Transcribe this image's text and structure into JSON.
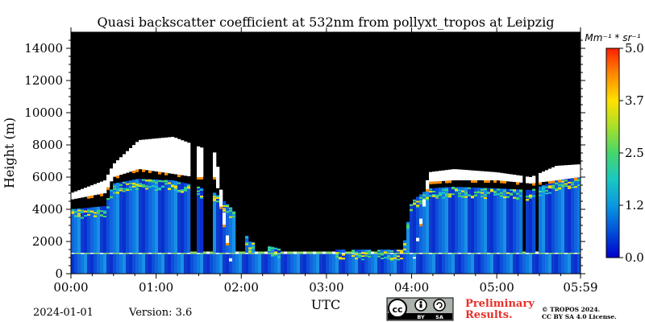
{
  "chart_data": {
    "type": "heatmap",
    "title": "Quasi backscatter coefficient at 532nm from pollyxt_tropos at Leipzig",
    "xlabel": "UTC",
    "ylabel": "Height (m)",
    "x_ticks": [
      "00:00",
      "01:00",
      "02:00",
      "03:00",
      "04:00",
      "05:00",
      "05:59"
    ],
    "x_range_hours": [
      0,
      5.983
    ],
    "y_ticks": [
      0,
      2000,
      4000,
      6000,
      8000,
      10000,
      12000,
      14000
    ],
    "ylim": [
      0,
      15000
    ],
    "colorbar": {
      "label": "Mm⁻¹ * sr⁻¹",
      "ticks": [
        "0.0",
        "1.2",
        "2.5",
        "3.7",
        "5.0"
      ],
      "range": [
        0,
        5
      ],
      "colormap": [
        "#0000cc",
        "#0050d8",
        "#0a98e0",
        "#19c9c1",
        "#46d66b",
        "#a8e02a",
        "#ffe100",
        "#ff8a00",
        "#ff1f00"
      ]
    },
    "background_color": "#000000",
    "profile": {
      "hours": [
        0.0,
        0.4,
        0.5,
        0.8,
        1.2,
        1.45,
        1.7,
        1.9,
        2.1,
        2.5,
        3.0,
        3.5,
        3.9,
        4.0,
        4.2,
        4.5,
        5.0,
        5.4,
        5.7,
        5.983
      ],
      "top_m": [
        4000,
        4200,
        5600,
        5900,
        5800,
        5500,
        5000,
        4000,
        2000,
        1500,
        1500,
        1500,
        1500,
        4500,
        5300,
        5400,
        5300,
        5200,
        5800,
        6000
      ],
      "cloud_base_m": [
        4600,
        5000,
        6000,
        6500,
        6200,
        6000,
        6000,
        0,
        0,
        0,
        0,
        0,
        0,
        0,
        5700,
        5800,
        5800,
        5600,
        5800,
        6000
      ],
      "cloud_top_m": [
        5000,
        5800,
        6800,
        8300,
        8500,
        8000,
        7500,
        0,
        0,
        0,
        0,
        0,
        0,
        0,
        6300,
        6500,
        6300,
        6000,
        6700,
        6800
      ]
    },
    "boundary_layer_top_m": 1300,
    "gaps_hours": [
      [
        1.42,
        1.47
      ],
      [
        1.57,
        1.67
      ],
      [
        1.95,
        2.05
      ],
      [
        2.15,
        2.3
      ],
      [
        2.45,
        3.1
      ],
      [
        3.22,
        3.3
      ],
      [
        3.52,
        3.6
      ],
      [
        3.85,
        3.88
      ],
      [
        5.3,
        5.35
      ],
      [
        5.45,
        5.5
      ]
    ]
  },
  "footer": {
    "date": "2024-01-01",
    "version": "Version: 3.6",
    "preliminary_line1": "Preliminary",
    "preliminary_line2": "Results.",
    "copyright_line1": "© TROPOS 2024.",
    "copyright_line2": "CC BY SA 4.0 License.",
    "cc_badge": {
      "c1": "BY",
      "c2": "SA",
      "icon": "creative-commons-icon"
    }
  },
  "colors": {
    "preliminary": "#e8302a",
    "axis": "#000000"
  }
}
